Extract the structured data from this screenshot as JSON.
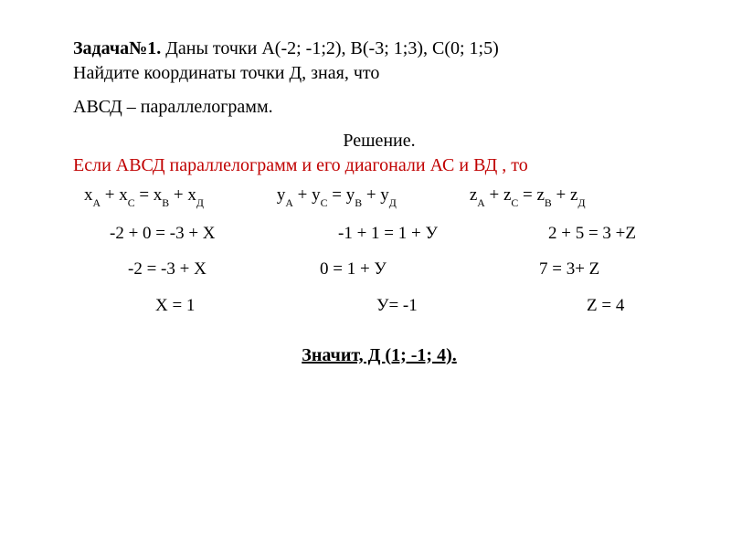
{
  "problem_label": "Задача№1.",
  "problem_text": " Даны точки А(-2; -1;2), В(-3; 1;3), С(0; 1;5)",
  "line2": "Найдите координаты точки Д, зная, что",
  "line3": "АВСД – параллелограмм.",
  "solution_heading": "Решение.",
  "red_line": "Если АВСД параллелограмм и его диагонали АС и ВД , то",
  "eq": {
    "x": {
      "a": "x",
      "b": "x",
      "c": "x",
      "d": "x",
      "sA": "А",
      "sC": "С",
      "sB": "В",
      "sD": "Д"
    },
    "y": {
      "a": "y",
      "b": "y",
      "c": "y",
      "d": "y",
      "sA": "А",
      "sC": "С",
      "sB": "В",
      "sD": "Д"
    },
    "z": {
      "a": "z",
      "b": "z",
      "c": "z",
      "d": "z",
      "sA": "А",
      "sC": "С",
      "sB": "В",
      "sD": "Д"
    }
  },
  "calc": {
    "r1": {
      "x": "-2 + 0  = -3 + Х",
      "y": "-1 + 1 = 1 + У",
      "z": "2 + 5 = 3 +Z"
    },
    "r2": {
      "x": "-2  = -3 + Х",
      "y": "0 = 1 + У",
      "z": "7  =  3+ Z"
    },
    "r3": {
      "x": "Х = 1",
      "y": "У= -1",
      "z": "Z = 4"
    }
  },
  "answer": "Значит,  Д (1; -1; 4).",
  "colors": {
    "text": "#000000",
    "red": "#c00000",
    "bg": "#ffffff"
  },
  "fontsize": {
    "body": 20,
    "sub": 12
  }
}
